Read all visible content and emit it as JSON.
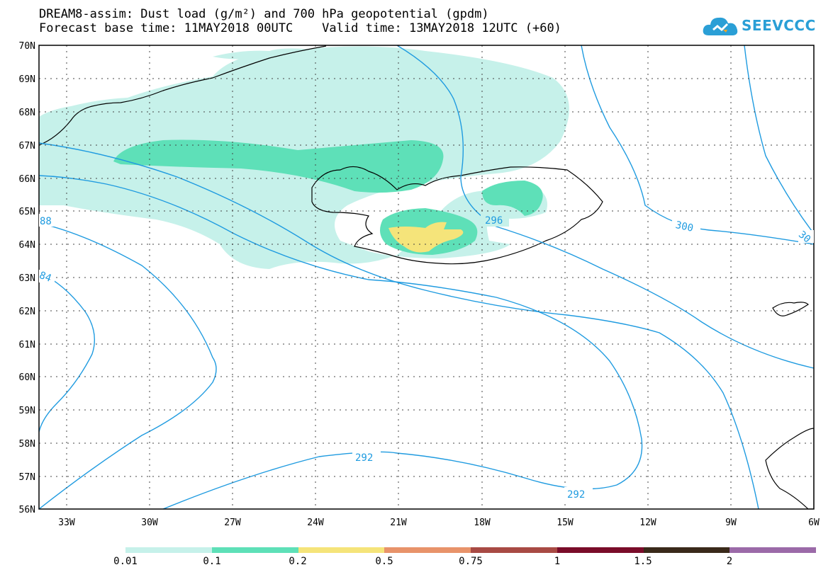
{
  "title": {
    "line1": "DREAM8-assim: Dust load (g/m²) and 700 hPa geopotential (gpdm)",
    "line2": "Forecast base time: 11MAY2018 00UTC    Valid time: 13MAY2018 12UTC (+60)"
  },
  "logo": {
    "text": "SEEVCCC",
    "icon": "cloud-logo-icon",
    "color": "#2a9fd6"
  },
  "map": {
    "lon_labels": [
      "33W",
      "30W",
      "27W",
      "24W",
      "21W",
      "18W",
      "15W",
      "12W",
      "9W",
      "6W"
    ],
    "lat_labels": [
      "70N",
      "69N",
      "68N",
      "67N",
      "66N",
      "65N",
      "64N",
      "63N",
      "62N",
      "61N",
      "60N",
      "59N",
      "58N",
      "57N",
      "56N"
    ],
    "lon_range": [
      "34.2W",
      "6W"
    ],
    "lat_range": [
      "56N",
      "70N"
    ],
    "contour_color": "#1f9be0",
    "contour_labels": [
      "296",
      "300",
      "30",
      "292",
      "292",
      "88",
      "84"
    ],
    "grid": "dotted"
  },
  "legend": {
    "colors": [
      "#c6f1ea",
      "#5ee0b8",
      "#f5e47a",
      "#e8936a",
      "#a84a44",
      "#7a0c2a",
      "#3a2a1a",
      "#9b6aa8"
    ],
    "labels": [
      "0.01",
      "0.1",
      "0.2",
      "0.5",
      "0.75",
      "1",
      "1.5",
      "2"
    ]
  }
}
